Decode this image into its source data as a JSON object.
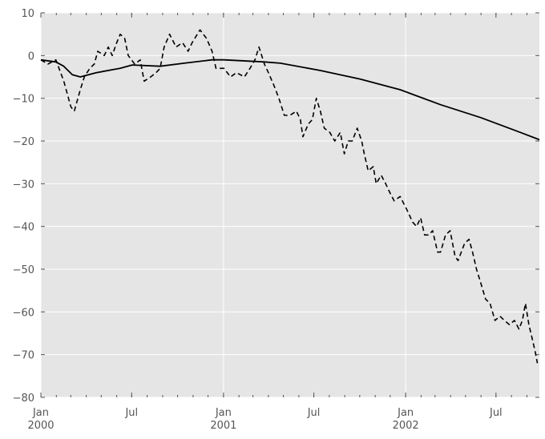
{
  "chart_data": {
    "type": "line",
    "title": "",
    "xlabel": "",
    "ylabel": "",
    "xlim": [
      "2000-01-01",
      "2002-09-26"
    ],
    "ylim": [
      -80,
      10
    ],
    "grid": true,
    "style": "ggplot",
    "background_color": "#e5e5e5",
    "grid_color": "#ffffff",
    "y_ticks": [
      10,
      0,
      -10,
      -20,
      -30,
      -40,
      -50,
      -60,
      -70,
      -80
    ],
    "y_tick_labels": [
      "10",
      "0",
      "−10",
      "−20",
      "−30",
      "−40",
      "−50",
      "−60",
      "−70",
      "−80"
    ],
    "x_major_ticks": [
      {
        "date": "2000-01-01",
        "label": "Jan",
        "sublabel": "2000"
      },
      {
        "date": "2000-07-01",
        "label": "Jul",
        "sublabel": ""
      },
      {
        "date": "2001-01-01",
        "label": "Jan",
        "sublabel": "2001"
      },
      {
        "date": "2001-07-01",
        "label": "Jul",
        "sublabel": ""
      },
      {
        "date": "2002-01-01",
        "label": "Jan",
        "sublabel": "2002"
      },
      {
        "date": "2002-07-01",
        "label": "Jul",
        "sublabel": ""
      }
    ],
    "series": [
      {
        "style": "dashed",
        "color": "#000000",
        "x": [
          "2000-01-01",
          "2000-01-15",
          "2000-01-31",
          "2000-02-16",
          "2000-03-01",
          "2000-03-08",
          "2000-03-20",
          "2000-03-28",
          "2000-04-08",
          "2000-04-17",
          "2000-04-24",
          "2000-05-07",
          "2000-05-15",
          "2000-05-23",
          "2000-06-01",
          "2000-06-08",
          "2000-06-17",
          "2000-06-24",
          "2000-07-07",
          "2000-07-18",
          "2000-07-26",
          "2000-08-08",
          "2000-08-19",
          "2000-08-27",
          "2000-09-04",
          "2000-09-15",
          "2000-09-28",
          "2000-10-11",
          "2000-10-22",
          "2000-10-30",
          "2000-11-15",
          "2000-11-28",
          "2000-12-09",
          "2000-12-17",
          "2001-01-02",
          "2001-01-15",
          "2001-01-27",
          "2001-02-12",
          "2001-02-23",
          "2001-03-05",
          "2001-03-13",
          "2001-03-24",
          "2001-04-01",
          "2001-04-12",
          "2001-04-22",
          "2001-05-03",
          "2001-05-14",
          "2001-05-27",
          "2001-06-04",
          "2001-06-09",
          "2001-06-20",
          "2001-06-28",
          "2001-07-06",
          "2001-07-14",
          "2001-07-22",
          "2001-08-02",
          "2001-08-12",
          "2001-08-23",
          "2001-08-31",
          "2001-09-08",
          "2001-09-16",
          "2001-09-26",
          "2001-10-05",
          "2001-10-10",
          "2001-10-18",
          "2001-10-28",
          "2001-11-03",
          "2001-11-13",
          "2001-11-22",
          "2001-11-30",
          "2001-12-09",
          "2001-12-21",
          "2002-01-03",
          "2002-01-15",
          "2002-01-23",
          "2002-01-31",
          "2002-02-08",
          "2002-02-16",
          "2002-02-24",
          "2002-03-06",
          "2002-03-12",
          "2002-03-22",
          "2002-03-31",
          "2002-04-10",
          "2002-04-16",
          "2002-04-29",
          "2002-05-08",
          "2002-05-15",
          "2002-05-23",
          "2002-05-31",
          "2002-06-10",
          "2002-06-19",
          "2002-06-29",
          "2002-07-09",
          "2002-07-18",
          "2002-07-28",
          "2002-08-07",
          "2002-08-16",
          "2002-08-23",
          "2002-08-29",
          "2002-09-05",
          "2002-09-11",
          "2002-09-17",
          "2002-09-22"
        ],
        "y": [
          -1,
          -2,
          -1,
          -6,
          -12,
          -13,
          -8,
          -5,
          -3,
          -2,
          1,
          0,
          2,
          0,
          3,
          5,
          4,
          0,
          -2,
          -1,
          -6,
          -5,
          -4,
          -3,
          2,
          5,
          2,
          3,
          1,
          3,
          6,
          4,
          1,
          -3,
          -3,
          -5,
          -4,
          -5,
          -3,
          -1,
          2,
          -2,
          -4,
          -7,
          -10,
          -14,
          -14,
          -13,
          -15,
          -19,
          -16,
          -15,
          -10,
          -13,
          -17,
          -18,
          -20,
          -18,
          -23,
          -20,
          -20,
          -17,
          -20,
          -23,
          -27,
          -26,
          -30,
          -28,
          -30,
          -32,
          -34,
          -33,
          -36,
          -39,
          -40,
          -38,
          -42,
          -42,
          -41,
          -46,
          -46,
          -42,
          -41,
          -47,
          -48,
          -44,
          -43,
          -46,
          -50,
          -53,
          -57,
          -58,
          -62,
          -61,
          -62,
          -63,
          -62,
          -64,
          -62,
          -58,
          -63,
          -66,
          -69,
          -72
        ]
      },
      {
        "style": "solid",
        "color": "#000000",
        "x": [
          "2000-01-01",
          "2000-01-31",
          "2000-02-16",
          "2000-03-04",
          "2000-03-20",
          "2000-04-21",
          "2000-06-08",
          "2000-07-02",
          "2000-08-27",
          "2000-10-14",
          "2000-12-09",
          "2001-01-02",
          "2001-03-24",
          "2001-04-25",
          "2001-07-14",
          "2001-10-02",
          "2001-12-21",
          "2002-03-12",
          "2002-05-31",
          "2002-08-19",
          "2002-09-26"
        ],
        "y": [
          -1,
          -1.5,
          -2.5,
          -4.5,
          -5,
          -4,
          -3,
          -2.2,
          -2.5,
          -1.8,
          -1,
          -1,
          -1.5,
          -1.8,
          -3.5,
          -5.5,
          -8,
          -11.5,
          -14.5,
          -18,
          -19.7
        ]
      }
    ]
  }
}
